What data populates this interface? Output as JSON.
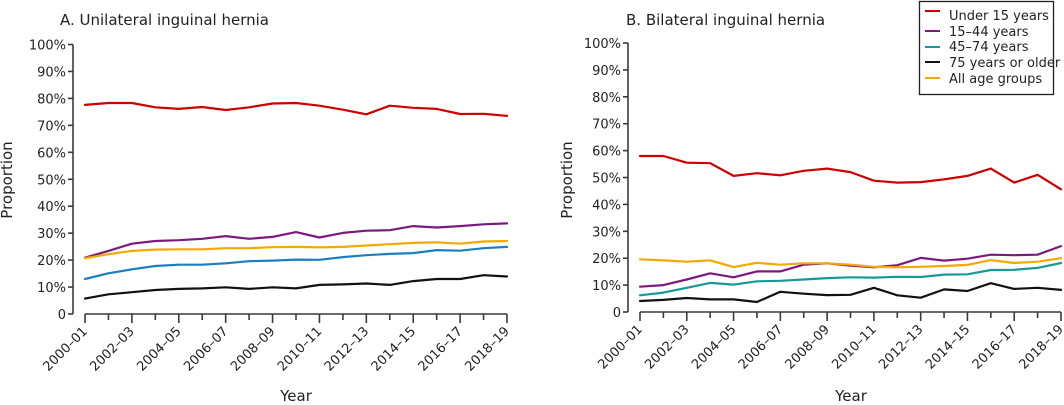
{
  "chart_data": [
    {
      "type": "line",
      "title": "A. Unilateral inguinal hernia",
      "xlabel": "Year",
      "ylabel": "Proportion",
      "ylim": [
        0,
        100
      ],
      "yticks": [
        "0",
        "10%",
        "20%",
        "30%",
        "40%",
        "50%",
        "60%",
        "70%",
        "80%",
        "90%",
        "100%"
      ],
      "ytick_values": [
        0,
        10,
        20,
        30,
        40,
        50,
        60,
        70,
        80,
        90,
        100
      ],
      "grid": false,
      "categories": [
        "2000–01",
        "2001–02",
        "2002–03",
        "2003–04",
        "2004–05",
        "2005–06",
        "2006–07",
        "2007–08",
        "2008–09",
        "2009–10",
        "2010–11",
        "2011–12",
        "2012–13",
        "2013–14",
        "2014–15",
        "2015–16",
        "2016–17",
        "2017–18",
        "2018–19"
      ],
      "xtick_labels": [
        "2000–01",
        "2002–03",
        "2004–05",
        "2006–07",
        "2008–09",
        "2010–11",
        "2012–13",
        "2014–15",
        "2016–17",
        "2018–19"
      ],
      "series": [
        {
          "name": "Under 15 years",
          "color": "#cc0000",
          "values": [
            77.6,
            78.3,
            78.3,
            76.7,
            76.1,
            76.8,
            75.7,
            76.7,
            78.1,
            78.3,
            77.3,
            75.8,
            74.1,
            77.3,
            76.5,
            76.1,
            74.2,
            74.3,
            73.5
          ]
        },
        {
          "name": "15–44 years",
          "color": "#7b1a7e",
          "values": [
            20.9,
            23.4,
            26.1,
            27.1,
            27.4,
            27.9,
            28.9,
            27.9,
            28.6,
            30.4,
            28.4,
            30.1,
            30.9,
            31.1,
            32.6,
            32.1,
            32.6,
            33.3,
            33.6
          ]
        },
        {
          "name": "45–74 years",
          "color": "#1a7fc1",
          "values": [
            13.0,
            15.1,
            16.6,
            17.8,
            18.3,
            18.3,
            18.8,
            19.6,
            19.8,
            20.2,
            20.1,
            21.1,
            21.8,
            22.3,
            22.6,
            23.7,
            23.5,
            24.4,
            24.9
          ]
        },
        {
          "name": "75 years or older",
          "color": "#111111",
          "values": [
            5.7,
            7.3,
            8.1,
            8.9,
            9.3,
            9.5,
            9.9,
            9.3,
            9.9,
            9.5,
            10.8,
            11.0,
            11.3,
            10.8,
            12.2,
            13.0,
            13.0,
            14.4,
            13.9
          ]
        },
        {
          "name": "All age groups",
          "color": "#f5a800",
          "values": [
            20.7,
            22.2,
            23.4,
            23.9,
            24.0,
            24.0,
            24.4,
            24.4,
            24.8,
            24.9,
            24.7,
            24.9,
            25.4,
            25.9,
            26.4,
            26.6,
            26.1,
            26.9,
            27.1
          ]
        }
      ]
    },
    {
      "type": "line",
      "title": "B. Bilateral inguinal hernia",
      "xlabel": "Year",
      "ylabel": "Proportion",
      "ylim": [
        0,
        100
      ],
      "yticks": [
        "0",
        "10%",
        "20%",
        "30%",
        "40%",
        "50%",
        "60%",
        "70%",
        "80%",
        "90%",
        "100%"
      ],
      "ytick_values": [
        0,
        10,
        20,
        30,
        40,
        50,
        60,
        70,
        80,
        90,
        100
      ],
      "grid": false,
      "legend": "top-right",
      "categories": [
        "2000–01",
        "2001–02",
        "2002–03",
        "2003–04",
        "2004–05",
        "2005–06",
        "2006–07",
        "2007–08",
        "2008–09",
        "2009–10",
        "2010–11",
        "2011–12",
        "2012–13",
        "2013–14",
        "2014–15",
        "2015–16",
        "2016–17",
        "2017–18",
        "2018–19"
      ],
      "xtick_labels": [
        "2000–01",
        "2002–03",
        "2004–05",
        "2006–07",
        "2008–09",
        "2010–11",
        "2012–13",
        "2014–15",
        "2016–17",
        "2018–19"
      ],
      "series": [
        {
          "name": "Under 15 years",
          "color": "#cc0000",
          "values": [
            58.0,
            58.0,
            55.5,
            55.3,
            50.6,
            51.6,
            50.8,
            52.5,
            53.3,
            52.0,
            48.8,
            48.1,
            48.3,
            49.3,
            50.6,
            53.3,
            48.1,
            51.0,
            45.6
          ]
        },
        {
          "name": "15–44 years",
          "color": "#7b1a7e",
          "values": [
            9.4,
            10.0,
            12.1,
            14.4,
            12.9,
            15.1,
            15.1,
            17.6,
            18.1,
            17.2,
            16.6,
            17.4,
            20.1,
            19.1,
            19.8,
            21.3,
            21.1,
            21.3,
            24.5
          ]
        },
        {
          "name": "45–74 years",
          "color": "#17999a",
          "values": [
            6.2,
            7.2,
            9.0,
            10.8,
            10.2,
            11.4,
            11.6,
            12.1,
            12.6,
            12.9,
            12.8,
            13.1,
            13.0,
            13.9,
            14.0,
            15.6,
            15.7,
            16.4,
            18.2
          ]
        },
        {
          "name": "75 years or older",
          "color": "#111111",
          "values": [
            4.1,
            4.5,
            5.2,
            4.7,
            4.7,
            3.7,
            7.5,
            6.8,
            6.3,
            6.4,
            9.0,
            6.2,
            5.3,
            8.4,
            7.8,
            10.7,
            8.6,
            9.0,
            8.2
          ]
        },
        {
          "name": "All age groups",
          "color": "#f5a800",
          "values": [
            19.6,
            19.2,
            18.7,
            19.2,
            16.7,
            18.3,
            17.6,
            18.1,
            18.1,
            17.6,
            16.8,
            16.6,
            16.8,
            17.1,
            17.5,
            19.3,
            18.2,
            18.7,
            20.0
          ]
        }
      ]
    }
  ],
  "legend": {
    "items": [
      {
        "label": "Under 15 years",
        "color": "#cc0000"
      },
      {
        "label": "15–44 years",
        "color": "#7b1a7e"
      },
      {
        "label": "45–74 years",
        "color": "#17999a"
      },
      {
        "label": "75 years or older",
        "color": "#111111"
      },
      {
        "label": "All age groups",
        "color": "#f5a800"
      }
    ]
  }
}
